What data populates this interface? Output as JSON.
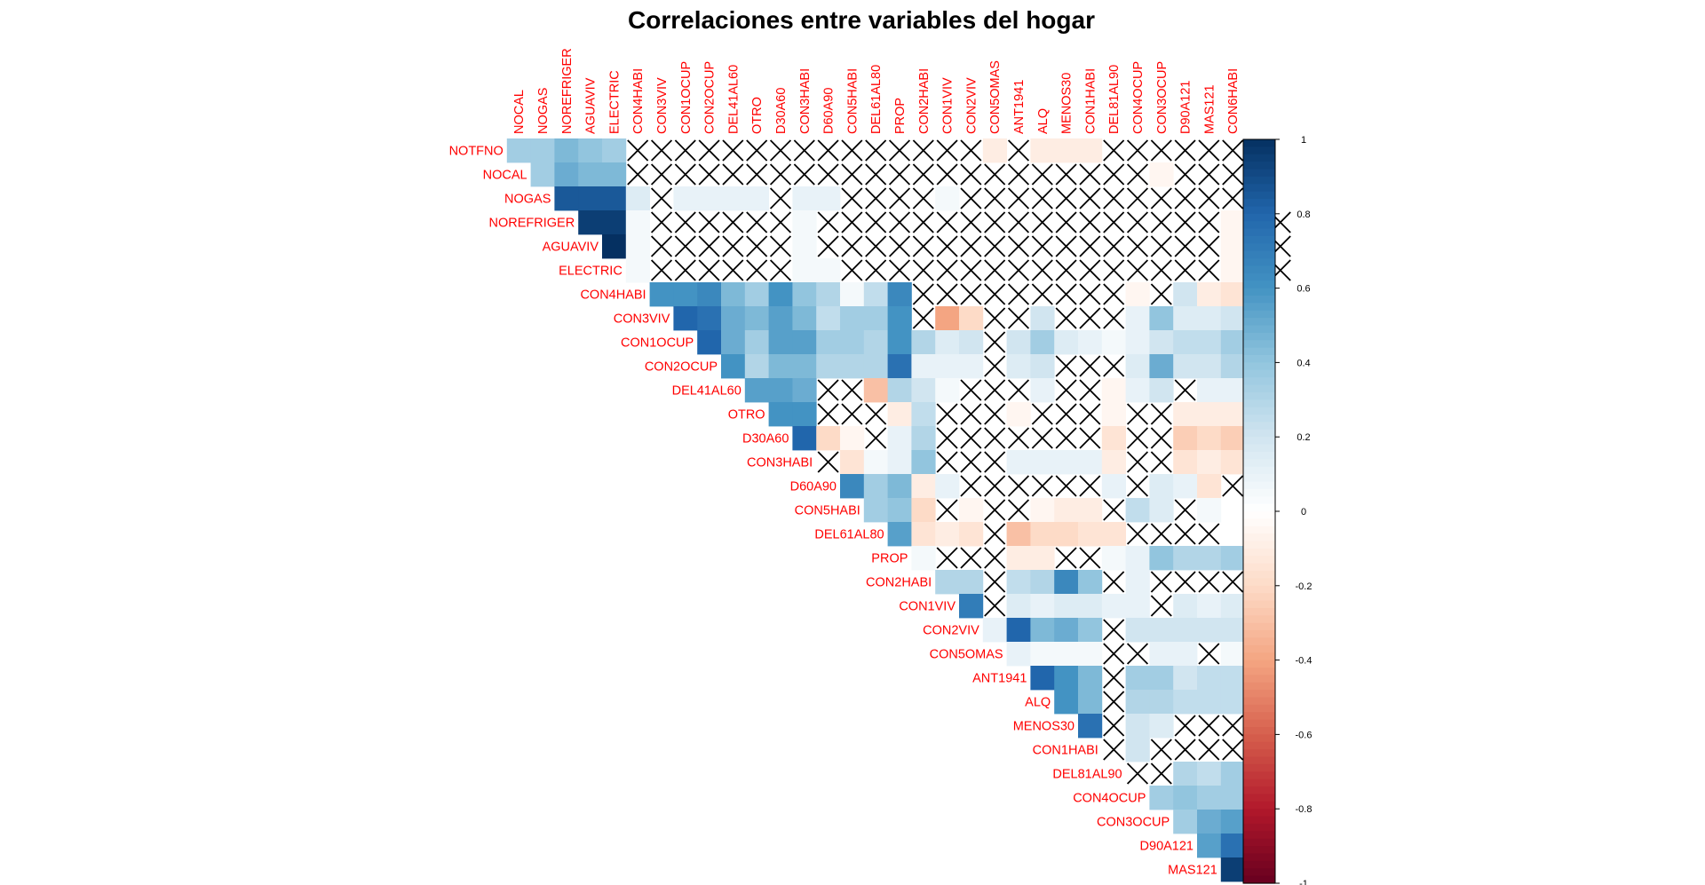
{
  "chart_data": {
    "type": "heatmap",
    "title": "Correlaciones entre variables del hogar",
    "layout": "upper-triangle",
    "non_significant_marker": "X",
    "variables": [
      "NOTFNO",
      "NOCAL",
      "NOGAS",
      "NOREFRIGER",
      "AGUAVIV",
      "ELECTRIC",
      "CON4HABI",
      "CON3VIV",
      "CON1OCUP",
      "CON2OCUP",
      "DEL41AL60",
      "OTRO",
      "D30A60",
      "CON3HABI",
      "D60A90",
      "CON5HABI",
      "DEL61AL80",
      "PROP",
      "CON2HABI",
      "CON1VIV",
      "CON2VIV",
      "CON5OMAS",
      "ANT1941",
      "ALQ",
      "MENOS30",
      "CON1HABI",
      "DEL81AL90",
      "CON4OCUP",
      "CON3OCUP",
      "D90A121",
      "MAS121",
      "CON6HABI"
    ],
    "upper_rows": [
      {
        "row": "NOTFNO",
        "values": [
          0.35,
          0.35,
          0.45,
          0.4,
          0.35,
          "X",
          "X",
          "X",
          "X",
          "X",
          "X",
          "X",
          "X",
          "X",
          "X",
          "X",
          "X",
          "X",
          "X",
          "X",
          -0.1,
          "X",
          -0.1,
          -0.1,
          -0.1,
          "X",
          "X",
          "X",
          "X",
          "X",
          "X"
        ]
      },
      {
        "row": "NOCAL",
        "values": [
          0.35,
          0.5,
          0.45,
          0.45,
          "X",
          "X",
          "X",
          "X",
          "X",
          "X",
          "X",
          "X",
          "X",
          "X",
          "X",
          "X",
          "X",
          "X",
          "X",
          "X",
          "X",
          "X",
          "X",
          "X",
          "X",
          "X",
          -0.05,
          "X",
          "X",
          "X",
          "X"
        ]
      },
      {
        "row": "NOGAS",
        "values": [
          0.85,
          0.85,
          0.85,
          0.15,
          "X",
          0.1,
          0.1,
          0.1,
          0.1,
          "X",
          0.1,
          0.1,
          "X",
          "X",
          "X",
          "X",
          0.05,
          "X",
          "X",
          "X",
          "X",
          "X",
          "X",
          "X",
          "X",
          "X",
          "X",
          "X",
          "X",
          "X"
        ]
      },
      {
        "row": "NOREFRIGER",
        "values": [
          0.95,
          0.95,
          0.05,
          "X",
          "X",
          "X",
          "X",
          "X",
          "X",
          0.05,
          "X",
          "X",
          "X",
          "X",
          "X",
          "X",
          "X",
          "X",
          "X",
          "X",
          "X",
          "X",
          "X",
          "X",
          "X",
          "X",
          "X",
          -0.05,
          "X",
          "X"
        ]
      },
      {
        "row": "AGUAVIV",
        "values": [
          1.0,
          0.05,
          "X",
          "X",
          "X",
          "X",
          "X",
          "X",
          0.05,
          "X",
          "X",
          "X",
          "X",
          "X",
          "X",
          "X",
          "X",
          "X",
          "X",
          "X",
          "X",
          "X",
          "X",
          "X",
          "X",
          "X",
          -0.05,
          "X",
          "X"
        ]
      },
      {
        "row": "ELECTRIC",
        "values": [
          0.05,
          "X",
          "X",
          "X",
          "X",
          "X",
          "X",
          0.05,
          0.05,
          "X",
          "X",
          "X",
          "X",
          "X",
          "X",
          "X",
          "X",
          "X",
          "X",
          "X",
          "X",
          "X",
          "X",
          "X",
          "X",
          -0.05,
          "X",
          "X"
        ]
      },
      {
        "row": "CON4HABI",
        "values": [
          0.6,
          0.6,
          0.65,
          0.45,
          0.35,
          0.6,
          0.4,
          0.3,
          0.05,
          0.25,
          0.65,
          "X",
          "X",
          "X",
          "X",
          "X",
          "X",
          "X",
          "X",
          "X",
          -0.05,
          "X",
          0.2,
          -0.1,
          -0.15,
          -0.15
        ]
      },
      {
        "row": "CON3VIV",
        "values": [
          0.8,
          0.75,
          0.5,
          0.45,
          0.55,
          0.45,
          0.25,
          0.35,
          0.35,
          0.6,
          "X",
          -0.4,
          -0.2,
          "X",
          "X",
          0.2,
          "X",
          "X",
          "X",
          0.1,
          0.4,
          0.15,
          0.15,
          0.2
        ]
      },
      {
        "row": "CON1OCUP",
        "values": [
          0.8,
          0.5,
          0.35,
          0.55,
          0.55,
          0.35,
          0.35,
          0.3,
          0.6,
          0.3,
          0.15,
          0.2,
          "X",
          0.2,
          0.35,
          0.15,
          0.1,
          0.05,
          0.1,
          0.2,
          0.25,
          0.25,
          0.35
        ]
      },
      {
        "row": "CON2OCUP",
        "values": [
          0.6,
          0.3,
          0.45,
          0.45,
          0.3,
          0.3,
          0.3,
          0.75,
          0.1,
          0.1,
          0.1,
          "X",
          0.15,
          0.2,
          "X",
          "X",
          "X",
          0.15,
          0.5,
          0.2,
          0.2,
          0.3
        ]
      },
      {
        "row": "DEL41AL60",
        "values": [
          0.55,
          0.55,
          0.5,
          "X",
          "X",
          -0.3,
          0.3,
          0.2,
          0.05,
          "X",
          "X",
          "X",
          0.1,
          "X",
          "X",
          -0.05,
          0.1,
          0.2,
          "X",
          0.1,
          0.1
        ]
      },
      {
        "row": "OTRO",
        "values": [
          0.6,
          0.6,
          "X",
          "X",
          "X",
          -0.1,
          0.25,
          "X",
          "X",
          "X",
          -0.05,
          "X",
          "X",
          "X",
          -0.05,
          "X",
          "X",
          -0.1,
          -0.1,
          -0.1
        ]
      },
      {
        "row": "D30A60",
        "values": [
          0.8,
          -0.2,
          -0.05,
          "X",
          0.1,
          0.3,
          "X",
          "X",
          "X",
          "X",
          "X",
          "X",
          "X",
          -0.15,
          "X",
          "X",
          -0.25,
          -0.2,
          -0.25
        ]
      },
      {
        "row": "CON3HABI",
        "values": [
          "X",
          -0.15,
          0.05,
          0.1,
          0.4,
          "X",
          "X",
          "X",
          0.1,
          0.1,
          0.1,
          0.1,
          -0.1,
          "X",
          "X",
          -0.15,
          -0.1,
          -0.15
        ]
      },
      {
        "row": "D60A90",
        "values": [
          0.65,
          0.35,
          0.45,
          -0.1,
          0.1,
          "X",
          "X",
          "X",
          "X",
          "X",
          "X",
          0.1,
          "X",
          0.15,
          0.1,
          -0.15,
          "X"
        ]
      },
      {
        "row": "CON5HABI",
        "values": [
          0.35,
          0.4,
          -0.2,
          "X",
          -0.05,
          "X",
          "X",
          -0.05,
          -0.1,
          -0.1,
          "X",
          0.25,
          0.15,
          "X",
          0.05
        ]
      },
      {
        "row": "DEL61AL80",
        "values": [
          0.55,
          -0.15,
          -0.1,
          -0.15,
          "X",
          -0.3,
          -0.2,
          -0.2,
          -0.15,
          -0.15,
          "X",
          "X",
          "X",
          "X"
        ]
      },
      {
        "row": "PROP",
        "values": [
          0.05,
          "X",
          "X",
          "X",
          -0.1,
          -0.1,
          "X",
          "X",
          0.05,
          0.1,
          0.4,
          0.3,
          0.3,
          0.35
        ]
      },
      {
        "row": "CON2HABI",
        "values": [
          0.3,
          0.3,
          "X",
          0.25,
          0.3,
          0.65,
          0.4,
          "X",
          0.1,
          "X",
          "X",
          "X",
          "X"
        ]
      },
      {
        "row": "CON1VIV",
        "values": [
          0.7,
          "X",
          0.15,
          0.1,
          0.15,
          0.15,
          0.1,
          0.1,
          "X",
          0.15,
          0.1,
          0.15
        ]
      },
      {
        "row": "CON2VIV",
        "values": [
          0.1,
          0.8,
          0.45,
          0.5,
          0.4,
          "X",
          0.2,
          0.2,
          0.2,
          0.2,
          0.2
        ]
      },
      {
        "row": "CON5OMAS",
        "values": [
          0.1,
          0.05,
          0.05,
          0.05,
          "X",
          "X",
          0.1,
          0.1,
          "X",
          0.05
        ]
      },
      {
        "row": "ANT1941",
        "values": [
          0.8,
          0.6,
          0.45,
          "X",
          0.35,
          0.35,
          0.2,
          0.25,
          0.25
        ]
      },
      {
        "row": "ALQ",
        "values": [
          0.6,
          0.45,
          "X",
          0.3,
          0.3,
          0.25,
          0.25,
          0.25
        ]
      },
      {
        "row": "MENOS30",
        "values": [
          0.75,
          "X",
          0.2,
          0.15,
          "X",
          "X",
          "X"
        ]
      },
      {
        "row": "CON1HABI",
        "values": [
          "X",
          0.2,
          "X",
          "X",
          "X",
          "X"
        ]
      },
      {
        "row": "DEL81AL90",
        "values": [
          "X",
          "X",
          0.3,
          0.25,
          0.35
        ]
      },
      {
        "row": "CON4OCUP",
        "values": [
          0.35,
          0.4,
          0.35,
          0.35
        ]
      },
      {
        "row": "CON3OCUP",
        "values": [
          0.35,
          0.5,
          0.55
        ]
      },
      {
        "row": "D90A121",
        "values": [
          0.55,
          0.75
        ]
      },
      {
        "row": "MAS121",
        "values": [
          0.95
        ]
      }
    ],
    "colorbar": {
      "ticks": [
        "1",
        "0.8",
        "0.6",
        "0.4",
        "0.2",
        "0",
        "-0.2",
        "-0.4",
        "-0.6",
        "-0.8",
        "-1"
      ],
      "range": [
        -1,
        1
      ]
    }
  }
}
